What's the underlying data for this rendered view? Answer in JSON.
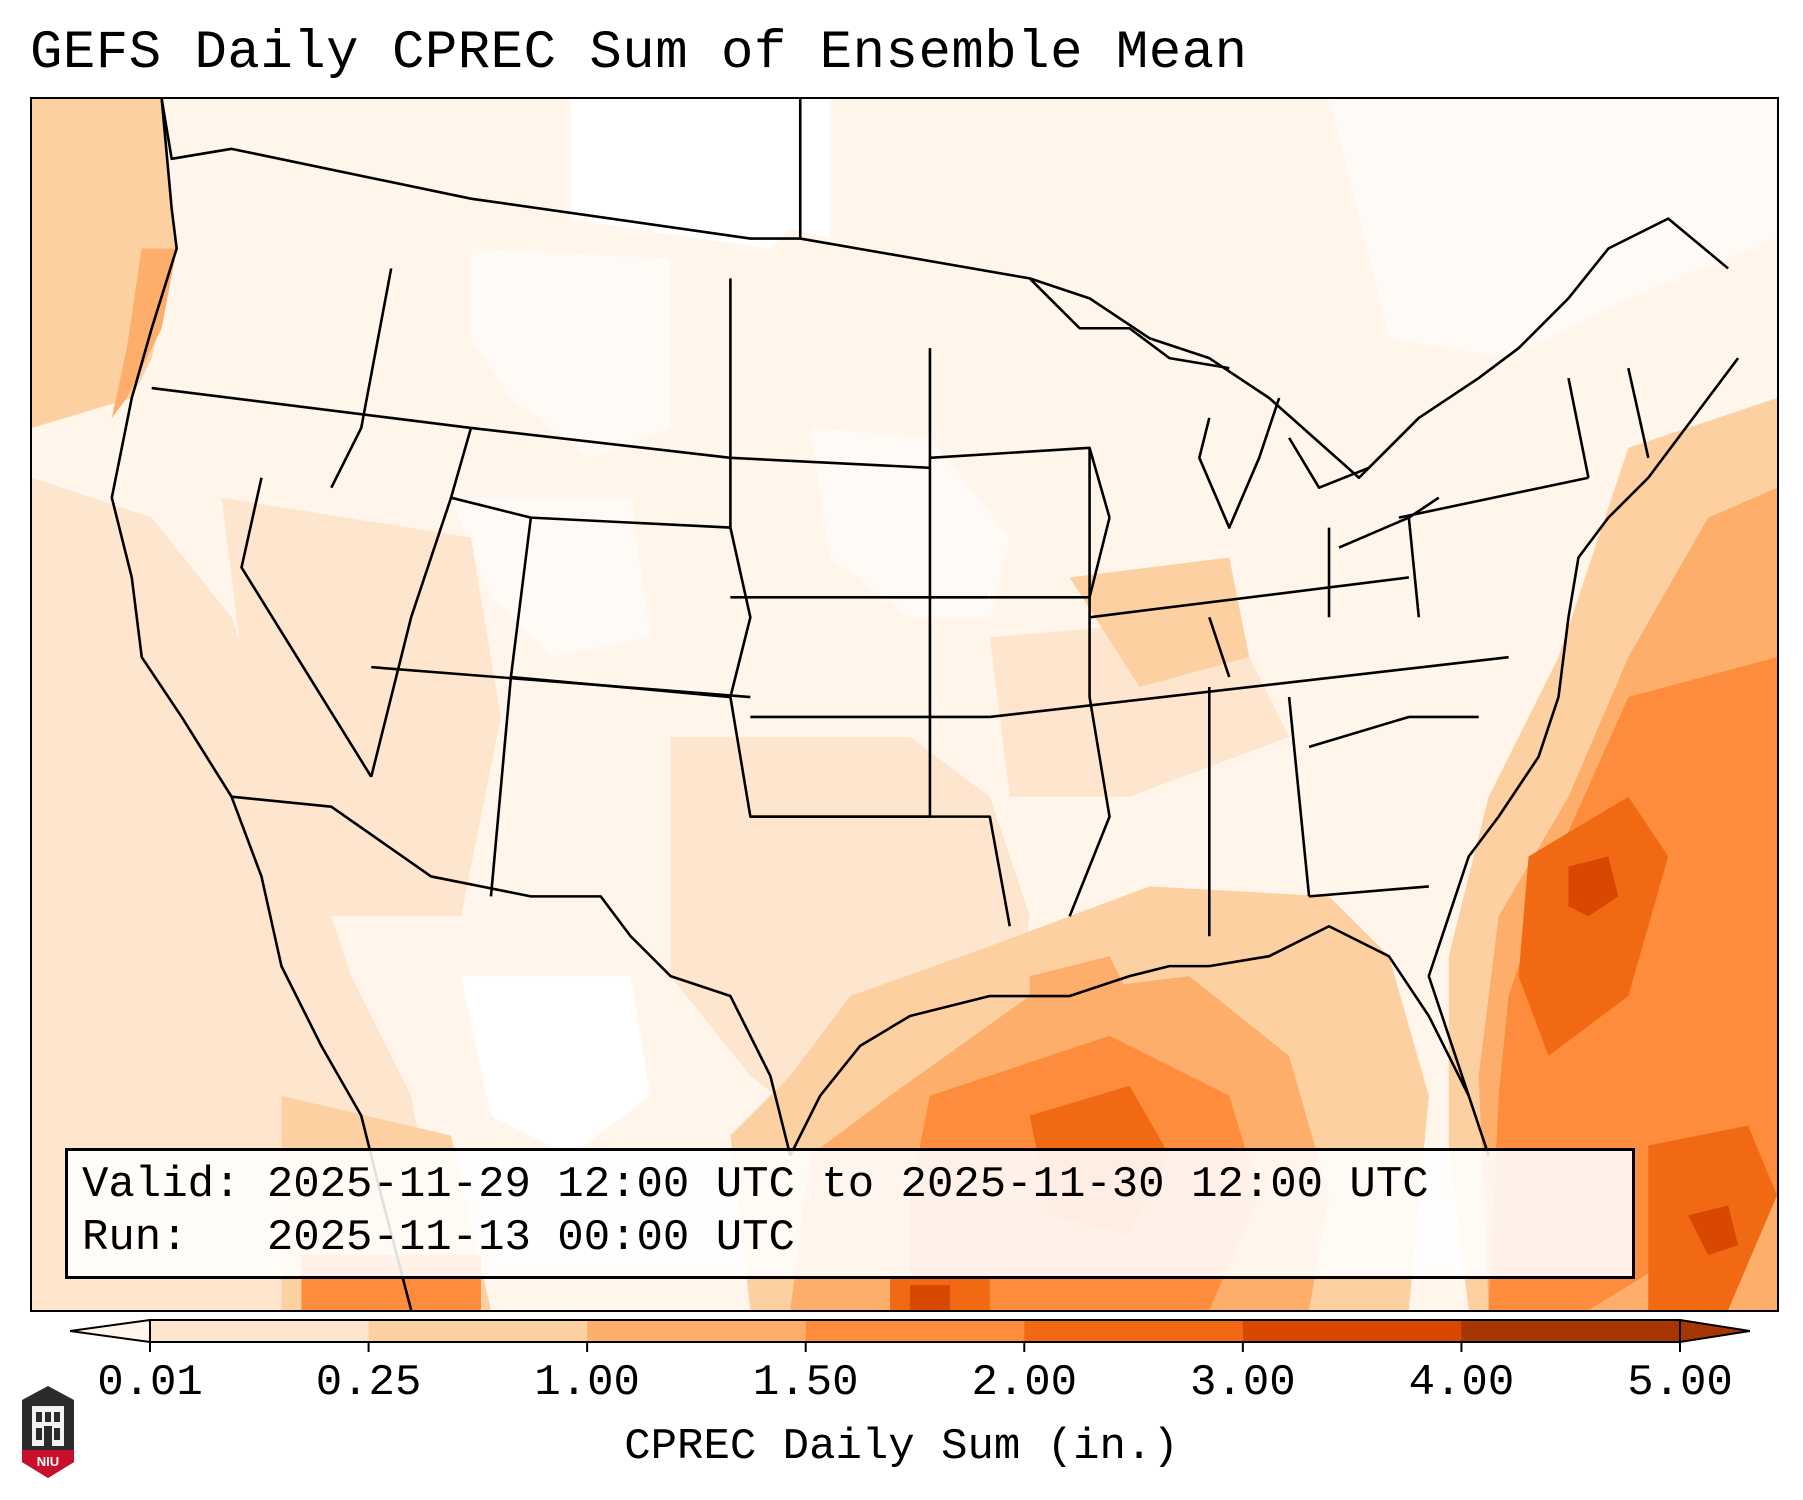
{
  "title": "GEFS Daily CPREC Sum of Ensemble Mean",
  "info": {
    "valid_label": "Valid:",
    "valid_value": "2025-11-29 12:00 UTC to 2025-11-30 12:00 UTC",
    "run_label": "Run:",
    "run_value": "2025-11-13 00:00 UTC"
  },
  "colorbar": {
    "title": "CPREC Daily Sum (in.)",
    "ticks": [
      "0.01",
      "0.25",
      "1.00",
      "1.50",
      "2.00",
      "3.00",
      "4.00",
      "5.00"
    ],
    "colors": [
      "#fff5eb",
      "#fee6ce",
      "#fdd0a2",
      "#fdae6b",
      "#fd8d3c",
      "#f16913",
      "#d94801",
      "#a63603"
    ],
    "extend": "both"
  },
  "logo": {
    "text": "NIU",
    "icon": "niu-tower-logo-icon"
  },
  "map": {
    "projection": "lambert-conformal",
    "region": "CONUS",
    "precip_levels": [
      "#fff5eb",
      "#fee6ce",
      "#fdd0a2",
      "#fdae6b",
      "#fd8d3c",
      "#f16913",
      "#d94801",
      "#a63603"
    ]
  }
}
